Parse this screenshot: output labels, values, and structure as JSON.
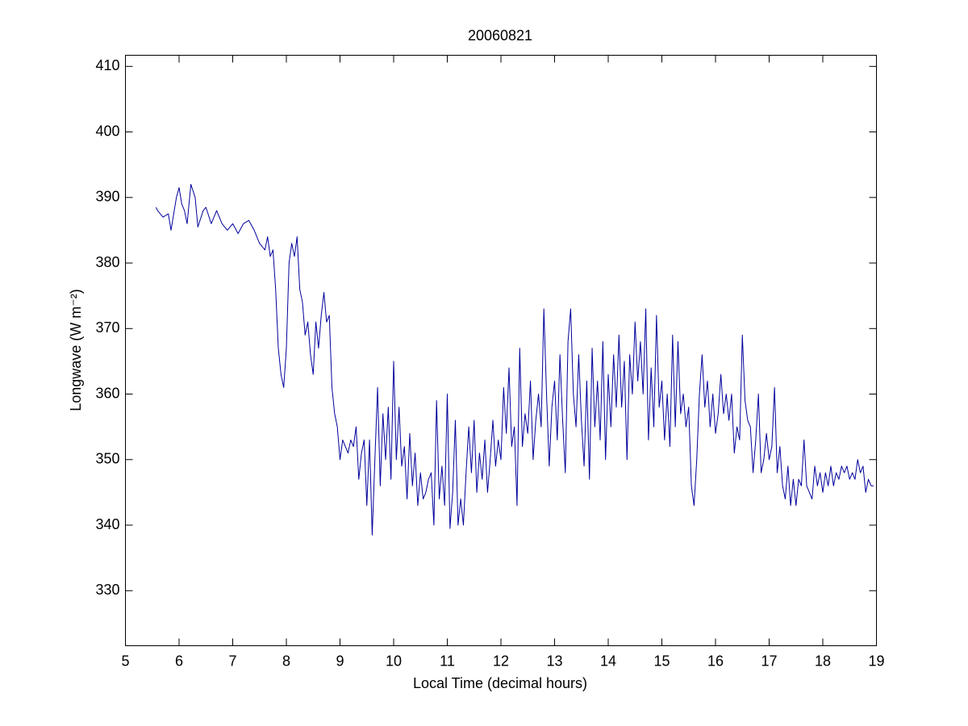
{
  "chart_data": {
    "type": "line",
    "title": "20060821",
    "xlabel": "Local Time (decimal hours)",
    "ylabel": "Longwave (W m⁻²)",
    "color": "#00009c",
    "xlim": [
      5,
      19
    ],
    "xticks": [
      5,
      6,
      7,
      8,
      9,
      10,
      11,
      12,
      13,
      14,
      15,
      16,
      17,
      18,
      19
    ],
    "ylim": [
      321.6,
      411.7
    ],
    "yticks": [
      330,
      340,
      350,
      360,
      370,
      380,
      390,
      400,
      410
    ],
    "grid": false,
    "x": [
      5.57,
      5.6,
      5.7,
      5.8,
      5.85,
      5.95,
      6.0,
      6.05,
      6.1,
      6.15,
      6.22,
      6.3,
      6.35,
      6.45,
      6.5,
      6.6,
      6.7,
      6.8,
      6.9,
      7.0,
      7.1,
      7.2,
      7.3,
      7.4,
      7.5,
      7.6,
      7.65,
      7.7,
      7.75,
      7.8,
      7.85,
      7.9,
      7.95,
      8.0,
      8.05,
      8.1,
      8.15,
      8.2,
      8.25,
      8.3,
      8.35,
      8.4,
      8.45,
      8.5,
      8.55,
      8.6,
      8.65,
      8.7,
      8.75,
      8.8,
      8.85,
      8.9,
      8.95,
      9.0,
      9.05,
      9.1,
      9.15,
      9.2,
      9.25,
      9.3,
      9.35,
      9.4,
      9.45,
      9.5,
      9.55,
      9.6,
      9.65,
      9.7,
      9.75,
      9.8,
      9.85,
      9.9,
      9.95,
      10.0,
      10.05,
      10.1,
      10.15,
      10.2,
      10.25,
      10.3,
      10.35,
      10.4,
      10.45,
      10.5,
      10.55,
      10.6,
      10.65,
      10.7,
      10.75,
      10.8,
      10.85,
      10.9,
      10.95,
      11.0,
      11.05,
      11.1,
      11.15,
      11.2,
      11.25,
      11.3,
      11.35,
      11.4,
      11.45,
      11.5,
      11.55,
      11.6,
      11.65,
      11.7,
      11.75,
      11.8,
      11.85,
      11.9,
      11.95,
      12.0,
      12.05,
      12.1,
      12.15,
      12.2,
      12.25,
      12.3,
      12.35,
      12.4,
      12.45,
      12.5,
      12.55,
      12.6,
      12.65,
      12.7,
      12.75,
      12.8,
      12.85,
      12.9,
      12.95,
      13.0,
      13.05,
      13.1,
      13.15,
      13.2,
      13.25,
      13.3,
      13.35,
      13.4,
      13.45,
      13.5,
      13.55,
      13.6,
      13.65,
      13.7,
      13.75,
      13.8,
      13.85,
      13.9,
      13.95,
      14.0,
      14.05,
      14.1,
      14.15,
      14.2,
      14.25,
      14.3,
      14.35,
      14.4,
      14.45,
      14.5,
      14.55,
      14.6,
      14.65,
      14.7,
      14.75,
      14.8,
      14.85,
      14.9,
      14.95,
      15.0,
      15.05,
      15.1,
      15.15,
      15.2,
      15.25,
      15.3,
      15.35,
      15.4,
      15.45,
      15.5,
      15.55,
      15.6,
      15.65,
      15.7,
      15.75,
      15.8,
      15.85,
      15.9,
      15.95,
      16.0,
      16.05,
      16.1,
      16.15,
      16.2,
      16.25,
      16.3,
      16.35,
      16.4,
      16.45,
      16.5,
      16.55,
      16.6,
      16.65,
      16.7,
      16.75,
      16.8,
      16.85,
      16.9,
      16.95,
      17.0,
      17.05,
      17.1,
      17.15,
      17.2,
      17.25,
      17.3,
      17.35,
      17.4,
      17.45,
      17.5,
      17.55,
      17.6,
      17.65,
      17.7,
      17.75,
      17.8,
      17.85,
      17.9,
      17.95,
      18.0,
      18.05,
      18.1,
      18.15,
      18.2,
      18.25,
      18.3,
      18.35,
      18.4,
      18.45,
      18.5,
      18.55,
      18.6,
      18.65,
      18.7,
      18.75,
      18.8,
      18.85,
      18.9,
      18.95
    ],
    "values": [
      388.5,
      388,
      387,
      387.5,
      385,
      390,
      391.5,
      389,
      388,
      386,
      392,
      390,
      385.5,
      388,
      388.5,
      386,
      388,
      386,
      385,
      386,
      384.5,
      386,
      386.5,
      385,
      383,
      382,
      384,
      381,
      382,
      376,
      367,
      363,
      361,
      367,
      380,
      383,
      381,
      384,
      376,
      374,
      369,
      371,
      366,
      363,
      371,
      367,
      372,
      375.5,
      371,
      372,
      361,
      357,
      355,
      350,
      353,
      352,
      351,
      353,
      352,
      355,
      347,
      351,
      353,
      343,
      353,
      338.5,
      350,
      361,
      346,
      357,
      350,
      358,
      347,
      365,
      350,
      358,
      349,
      352,
      344,
      354,
      346,
      351,
      343,
      348,
      344,
      345,
      347,
      348,
      340,
      359,
      344,
      349,
      343,
      360,
      339.5,
      345,
      356,
      340,
      344,
      340,
      348,
      355,
      348,
      356,
      345,
      351,
      347,
      353,
      345,
      350,
      356,
      349,
      353,
      350,
      361,
      354,
      364,
      352,
      355,
      343,
      367,
      352,
      357,
      354,
      362,
      350,
      356,
      360,
      355,
      373,
      360,
      349,
      358,
      362,
      353,
      366,
      356,
      348,
      368,
      373,
      360,
      355,
      366,
      356,
      349,
      362,
      347,
      367,
      355,
      362,
      353,
      368,
      350,
      363,
      355,
      366,
      358,
      369,
      358,
      365,
      350,
      366,
      360,
      371,
      362,
      368,
      360,
      373,
      353,
      364,
      355,
      372,
      358,
      362,
      353,
      360,
      352,
      369,
      355,
      368,
      357,
      360,
      355,
      358,
      346,
      343,
      350,
      360,
      366,
      358,
      362,
      355,
      360,
      354,
      357,
      363,
      357,
      360,
      356,
      360,
      351,
      355,
      353,
      369,
      359,
      356,
      355,
      348,
      353,
      360,
      348,
      350,
      354,
      350,
      352,
      361,
      348,
      352,
      346,
      344,
      349,
      343,
      347,
      343,
      347,
      346,
      353,
      346,
      345,
      344,
      349,
      346,
      348,
      345,
      348,
      346,
      349,
      346,
      348,
      347,
      349,
      348,
      349,
      347,
      348,
      347,
      350,
      348,
      349,
      345,
      347,
      346,
      346
    ]
  }
}
